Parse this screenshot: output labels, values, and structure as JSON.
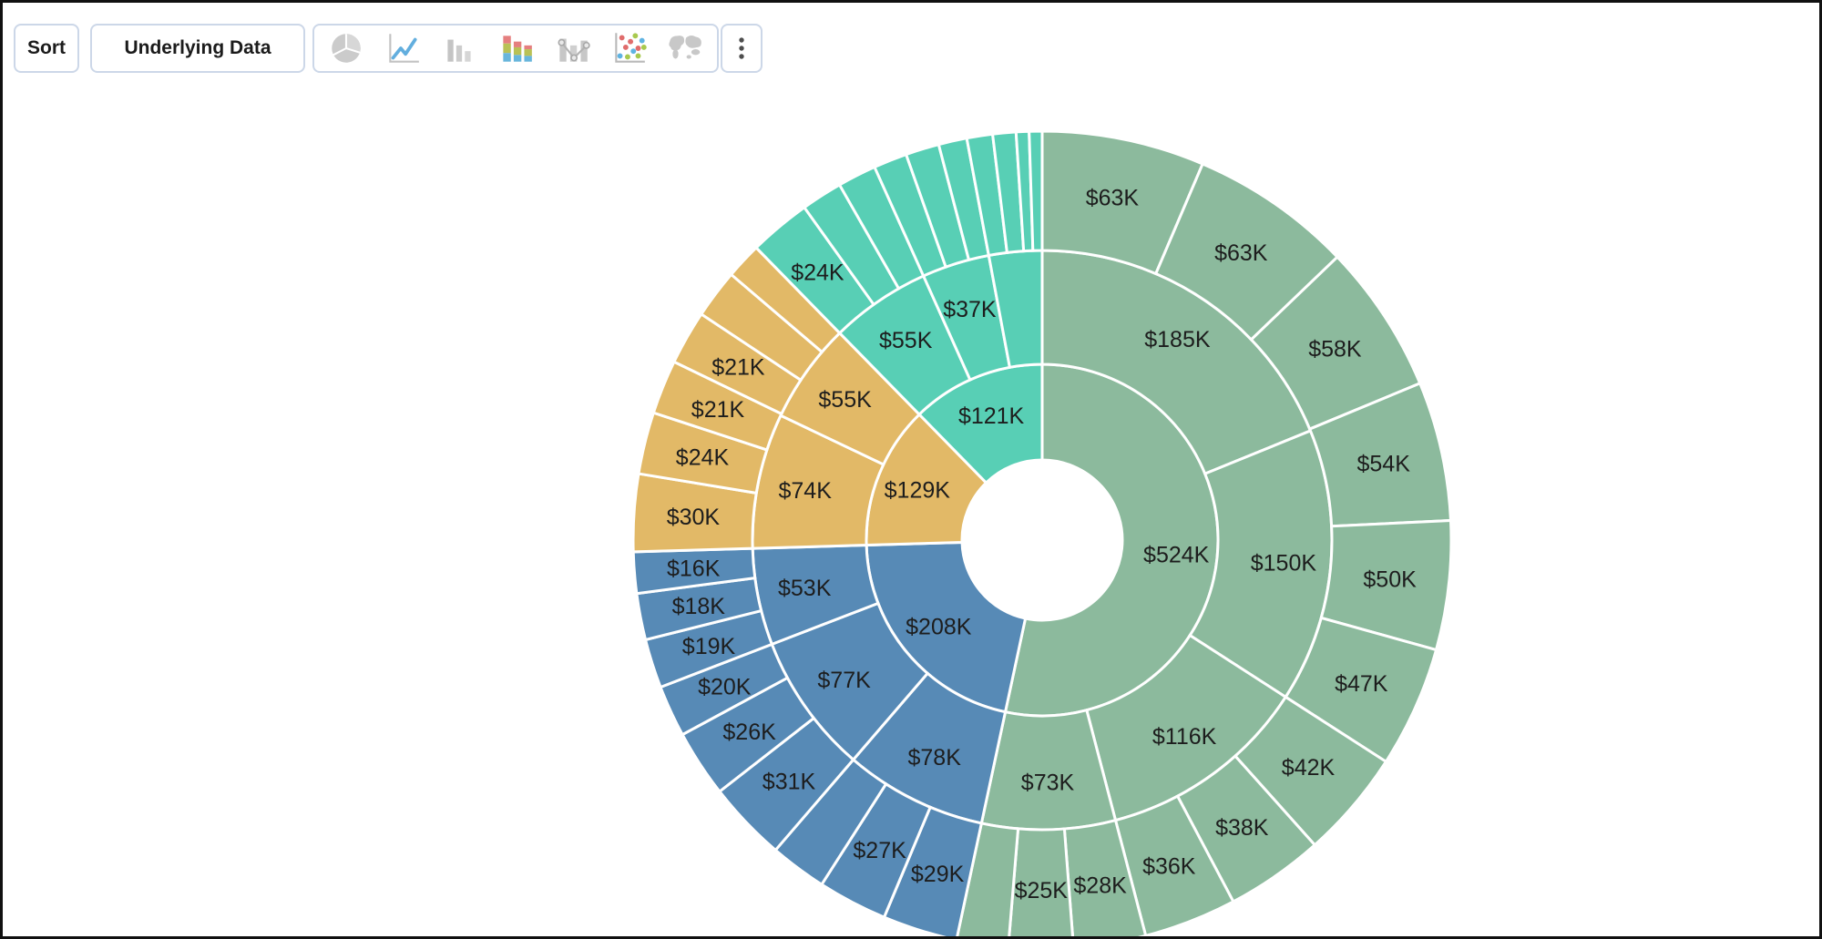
{
  "window": {
    "background_color": "#ffffff",
    "frame_border_color": "#111111"
  },
  "toolbar": {
    "sort_button": "Sort",
    "underlying_data_button": "Underlying Data",
    "chart_type_icons": [
      "pie-chart-icon",
      "line-chart-icon",
      "bar-chart-icon",
      "stacked-bar-chart-icon",
      "bar-line-combo-icon",
      "scatter-plot-icon",
      "world-map-icon"
    ],
    "menu_icon": "vertical-ellipsis-icon",
    "border_color": "#ccd7e8"
  },
  "chart_data": {
    "type": "sunburst",
    "title": "",
    "unit": "USD thousands (K)",
    "rings": 3,
    "legend": "none",
    "start_angle_deg": 0,
    "direction": "clockwise",
    "label_color": "#1d1d1d",
    "separator_color": "#ffffff",
    "palette": {
      "green": "#8CBA9D",
      "blue": "#578AB6",
      "gold": "#E2B967",
      "teal": "#58CFB5"
    },
    "groups": [
      {
        "label": "$524K",
        "value": 524,
        "color": "#8CBA9D",
        "children": [
          {
            "label": "$185K",
            "value": 185,
            "children": [
              {
                "label": "$63K",
                "value": 63
              },
              {
                "label": "$63K",
                "value": 63
              },
              {
                "label": "$58K",
                "value": 58
              }
            ]
          },
          {
            "label": "$150K",
            "value": 150,
            "children": [
              {
                "label": "$54K",
                "value": 54
              },
              {
                "label": "$50K",
                "value": 50
              },
              {
                "label": "$47K",
                "value": 47
              }
            ]
          },
          {
            "label": "$116K",
            "value": 116,
            "children": [
              {
                "label": "$42K",
                "value": 42
              },
              {
                "label": "$38K",
                "value": 38
              },
              {
                "label": "$36K",
                "value": 36
              }
            ]
          },
          {
            "label": "$73K",
            "value": 73,
            "children": [
              {
                "label": "$28K",
                "value": 28
              },
              {
                "label": "$25K",
                "value": 25
              },
              {
                "label": null,
                "value": 20
              }
            ]
          }
        ]
      },
      {
        "label": "$208K",
        "value": 208,
        "color": "#578AB6",
        "children": [
          {
            "label": "$78K",
            "value": 78,
            "children": [
              {
                "label": "$29K",
                "value": 29
              },
              {
                "label": "$27K",
                "value": 27
              },
              {
                "label": null,
                "value": 22
              }
            ]
          },
          {
            "label": "$77K",
            "value": 77,
            "children": [
              {
                "label": "$31K",
                "value": 31
              },
              {
                "label": "$26K",
                "value": 26
              },
              {
                "label": "$20K",
                "value": 20
              }
            ]
          },
          {
            "label": "$53K",
            "value": 53,
            "children": [
              {
                "label": "$19K",
                "value": 19
              },
              {
                "label": "$18K",
                "value": 18
              },
              {
                "label": "$16K",
                "value": 16
              }
            ]
          }
        ]
      },
      {
        "label": "$129K",
        "value": 129,
        "color": "#E2B967",
        "children": [
          {
            "label": "$74K",
            "value": 74,
            "children": [
              {
                "label": "$30K",
                "value": 30
              },
              {
                "label": "$24K",
                "value": 24
              },
              {
                "label": "$21K",
                "value": 21
              }
            ]
          },
          {
            "label": "$55K",
            "value": 55,
            "children": [
              {
                "label": "$21K",
                "value": 21
              },
              {
                "label": null,
                "value": 19
              },
              {
                "label": null,
                "value": 14
              }
            ]
          }
        ]
      },
      {
        "label": "$121K",
        "value": 121,
        "color": "#58CFB5",
        "children": [
          {
            "label": "$55K",
            "value": 55,
            "children": [
              {
                "label": "$24K",
                "value": 24
              },
              {
                "label": null,
                "value": 16
              },
              {
                "label": null,
                "value": 15
              }
            ]
          },
          {
            "label": "$37K",
            "value": 37,
            "children": [
              {
                "label": null,
                "value": 13
              },
              {
                "label": null,
                "value": 13
              },
              {
                "label": null,
                "value": 11
              }
            ]
          },
          {
            "label": null,
            "value": 29,
            "children": [
              {
                "label": null,
                "value": 10
              },
              {
                "label": null,
                "value": 9
              },
              {
                "label": null,
                "value": 5
              },
              {
                "label": null,
                "value": 5
              }
            ]
          }
        ]
      }
    ]
  }
}
